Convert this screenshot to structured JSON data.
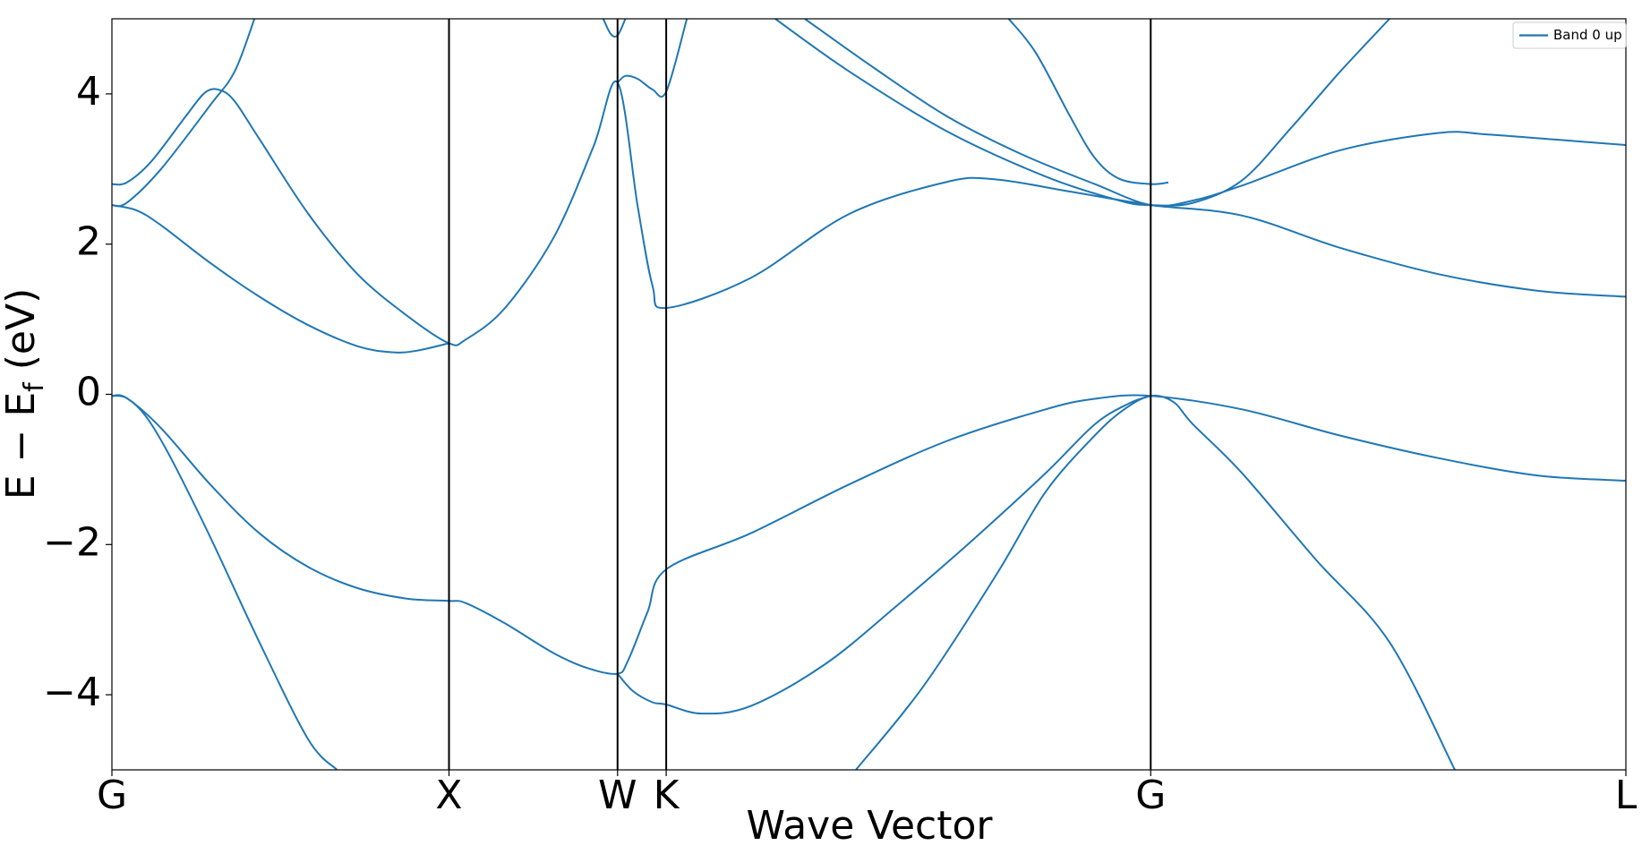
{
  "chart_data": {
    "type": "line",
    "xlabel": "Wave Vector",
    "ylabel": "E − E",
    "ylabel_sub": "f",
    "ylabel_unit": " (eV)",
    "ylim": [
      -5,
      5
    ],
    "yticks": [
      4,
      2,
      0,
      -2,
      -4
    ],
    "ytick_labels": [
      "4",
      "2",
      "0",
      "−2",
      "−4"
    ],
    "xlim": [
      0,
      3.081
    ],
    "kpoints": [
      {
        "label": "G",
        "x": 0
      },
      {
        "label": "X",
        "x": 0.686
      },
      {
        "label": "W",
        "x": 1.029
      },
      {
        "label": "K",
        "x": 1.128
      },
      {
        "label": "G",
        "x": 2.114
      },
      {
        "label": "L",
        "x": 3.081
      }
    ],
    "legend": {
      "label": "Band 0 up",
      "position": "upper right"
    },
    "line_color": "#1f77b4",
    "series": [
      {
        "values": [
          [
            0,
            -0.02
          ],
          [
            0.03,
            -0.05
          ],
          [
            0.07,
            -0.3
          ],
          [
            0.12,
            -0.85
          ],
          [
            0.2,
            -1.9
          ],
          [
            0.3,
            -3.3
          ],
          [
            0.4,
            -4.6
          ],
          [
            0.458,
            -5.0
          ]
        ]
      },
      {
        "values": [
          [
            0,
            -0.02
          ],
          [
            0.03,
            -0.05
          ],
          [
            0.1,
            -0.45
          ],
          [
            0.2,
            -1.2
          ],
          [
            0.3,
            -1.85
          ],
          [
            0.4,
            -2.3
          ],
          [
            0.5,
            -2.58
          ],
          [
            0.6,
            -2.72
          ],
          [
            0.686,
            -2.75
          ],
          [
            0.72,
            -2.78
          ],
          [
            0.8,
            -3.05
          ],
          [
            0.9,
            -3.45
          ],
          [
            0.97,
            -3.65
          ],
          [
            1.029,
            -3.72
          ],
          [
            1.05,
            -3.55
          ],
          [
            1.09,
            -2.9
          ],
          [
            1.128,
            -2.33
          ],
          [
            1.3,
            -1.85
          ],
          [
            1.5,
            -1.2
          ],
          [
            1.7,
            -0.62
          ],
          [
            1.9,
            -0.2
          ],
          [
            2.0,
            -0.06
          ],
          [
            2.114,
            -0.02
          ],
          [
            2.3,
            -0.2
          ],
          [
            2.5,
            -0.55
          ],
          [
            2.7,
            -0.85
          ],
          [
            2.9,
            -1.08
          ],
          [
            3.081,
            -1.15
          ]
        ]
      },
      {
        "values": [
          [
            1.029,
            -3.72
          ],
          [
            1.06,
            -3.95
          ],
          [
            1.1,
            -4.1
          ],
          [
            1.128,
            -4.13
          ],
          [
            1.2,
            -4.25
          ],
          [
            1.3,
            -4.15
          ],
          [
            1.45,
            -3.6
          ],
          [
            1.6,
            -2.8
          ],
          [
            1.75,
            -1.95
          ],
          [
            1.9,
            -1.05
          ],
          [
            2.0,
            -0.4
          ],
          [
            2.07,
            -0.12
          ],
          [
            2.114,
            -0.02
          ]
        ]
      },
      {
        "values": [
          [
            1.514,
            -5.0
          ],
          [
            1.65,
            -3.9
          ],
          [
            1.8,
            -2.4
          ],
          [
            1.9,
            -1.3
          ],
          [
            2.0,
            -0.55
          ],
          [
            2.06,
            -0.2
          ],
          [
            2.114,
            -0.02
          ],
          [
            2.16,
            -0.1
          ],
          [
            2.2,
            -0.4
          ],
          [
            2.3,
            -1.05
          ],
          [
            2.45,
            -2.2
          ],
          [
            2.6,
            -3.3
          ],
          [
            2.733,
            -5.0
          ]
        ]
      },
      {
        "values": [
          [
            0,
            2.52
          ],
          [
            0.05,
            2.45
          ],
          [
            0.1,
            2.25
          ],
          [
            0.2,
            1.75
          ],
          [
            0.3,
            1.3
          ],
          [
            0.4,
            0.92
          ],
          [
            0.5,
            0.64
          ],
          [
            0.57,
            0.56
          ],
          [
            0.62,
            0.58
          ],
          [
            0.686,
            0.68
          ]
        ]
      },
      {
        "values": [
          [
            0,
            2.52
          ],
          [
            0.03,
            2.55
          ],
          [
            0.1,
            3.0
          ],
          [
            0.2,
            3.85
          ],
          [
            0.25,
            4.3
          ],
          [
            0.29,
            5.0
          ]
        ]
      },
      {
        "values": [
          [
            0,
            2.8
          ],
          [
            0.03,
            2.82
          ],
          [
            0.08,
            3.1
          ],
          [
            0.15,
            3.7
          ],
          [
            0.19,
            4.02
          ],
          [
            0.22,
            4.05
          ],
          [
            0.25,
            3.9
          ],
          [
            0.3,
            3.4
          ],
          [
            0.4,
            2.4
          ],
          [
            0.5,
            1.6
          ],
          [
            0.6,
            1.05
          ],
          [
            0.686,
            0.68
          ],
          [
            0.72,
            0.73
          ],
          [
            0.8,
            1.15
          ],
          [
            0.9,
            2.1
          ],
          [
            0.98,
            3.3
          ],
          [
            1.029,
            4.15
          ],
          [
            1.07,
            2.5
          ],
          [
            1.1,
            1.45
          ],
          [
            1.128,
            1.15
          ],
          [
            1.3,
            1.55
          ],
          [
            1.5,
            2.4
          ],
          [
            1.7,
            2.83
          ],
          [
            1.8,
            2.86
          ],
          [
            1.95,
            2.7
          ],
          [
            2.114,
            2.52
          ],
          [
            2.3,
            2.38
          ],
          [
            2.5,
            1.95
          ],
          [
            2.7,
            1.6
          ],
          [
            2.9,
            1.38
          ],
          [
            3.081,
            1.3
          ]
        ]
      },
      {
        "values": [
          [
            1.029,
            4.15
          ],
          [
            1.045,
            4.24
          ],
          [
            1.07,
            4.2
          ],
          [
            1.1,
            4.06
          ],
          [
            1.128,
            4.03
          ],
          [
            1.17,
            5.0
          ]
        ]
      },
      {
        "values": [
          [
            1.0,
            5.0
          ],
          [
            1.015,
            4.8
          ],
          [
            1.029,
            4.78
          ],
          [
            1.045,
            5.0
          ]
        ]
      },
      {
        "values": [
          [
            1.41,
            5.0
          ],
          [
            1.55,
            4.35
          ],
          [
            1.7,
            3.7
          ],
          [
            1.85,
            3.2
          ],
          [
            2.0,
            2.8
          ],
          [
            2.114,
            2.52
          ],
          [
            2.2,
            2.58
          ],
          [
            2.3,
            2.78
          ],
          [
            2.5,
            3.25
          ],
          [
            2.7,
            3.48
          ],
          [
            2.8,
            3.46
          ],
          [
            3.0,
            3.36
          ],
          [
            3.081,
            3.32
          ]
        ]
      },
      {
        "values": [
          [
            1.35,
            5.0
          ],
          [
            1.5,
            4.3
          ],
          [
            1.7,
            3.5
          ],
          [
            1.9,
            2.9
          ],
          [
            2.05,
            2.58
          ],
          [
            2.114,
            2.52
          ],
          [
            2.2,
            2.55
          ],
          [
            2.3,
            2.85
          ],
          [
            2.4,
            3.55
          ],
          [
            2.5,
            4.3
          ],
          [
            2.6,
            5.0
          ]
        ]
      },
      {
        "values": [
          [
            1.825,
            5.0
          ],
          [
            1.88,
            4.55
          ],
          [
            1.95,
            3.7
          ],
          [
            2.0,
            3.15
          ],
          [
            2.05,
            2.87
          ],
          [
            2.114,
            2.8
          ],
          [
            2.15,
            2.82
          ]
        ]
      }
    ]
  }
}
